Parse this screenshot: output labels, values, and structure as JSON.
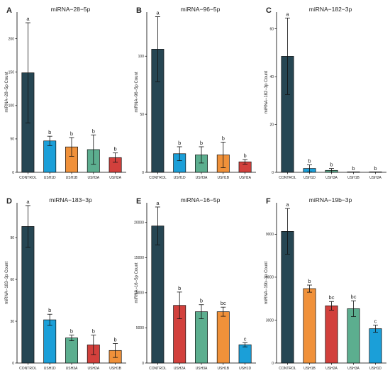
{
  "figure": {
    "panels": [
      {
        "letter": "A",
        "title": "miRNA−28−5p"
      },
      {
        "letter": "B",
        "title": "miRNA−96−5p"
      },
      {
        "letter": "C",
        "title": "miRNA−182−3p"
      },
      {
        "letter": "D",
        "title": "miRNA−183−3p"
      },
      {
        "letter": "E",
        "title": "miRNA−16−5p"
      },
      {
        "letter": "F",
        "title": "miRNA−19b−3p"
      }
    ]
  },
  "colors": {
    "CONTROL": "#264653",
    "USH1D": "#1b9fd8",
    "USH1B": "#f0913a",
    "USH3A": "#5cae8f",
    "USH2A": "#d2403c"
  },
  "chart_data": [
    {
      "type": "bar",
      "title": "miRNA−28−5p",
      "ylabel": "miRNA−28−5p Count",
      "categories": [
        "CONTROL",
        "USH1D",
        "USH1B",
        "USH3A",
        "USH2A"
      ],
      "values": [
        149,
        47,
        38,
        34,
        22
      ],
      "errors": [
        75,
        7,
        14,
        22,
        7
      ],
      "letters": [
        "a",
        "b",
        "b",
        "b",
        "b"
      ],
      "ylim": [
        0,
        240
      ],
      "yticks": [
        0,
        50,
        100,
        150,
        200
      ],
      "ytick_labels": [
        "0",
        "50",
        "100",
        "150",
        "200"
      ]
    },
    {
      "type": "bar",
      "title": "miRNA−96−5p",
      "ylabel": "miRNA−96−5p Count",
      "categories": [
        "CONTROL",
        "USH1D",
        "USH3A",
        "USH1B",
        "USH2A"
      ],
      "values": [
        106,
        16,
        15,
        15,
        9
      ],
      "errors": [
        28,
        6,
        7,
        11,
        2
      ],
      "letters": [
        "a",
        "b",
        "b",
        "b",
        "b"
      ],
      "ylim": [
        0,
        138
      ],
      "yticks": [
        0,
        50,
        100
      ],
      "ytick_labels": [
        "0",
        "50",
        "100"
      ]
    },
    {
      "type": "bar",
      "title": "miRNA−182−3p",
      "ylabel": "miRNA−182−3p Count",
      "categories": [
        "CONTROL",
        "USH1D",
        "USH3A",
        "USH1B",
        "USH2A"
      ],
      "values": [
        48.5,
        1.6,
        0.8,
        0,
        0
      ],
      "errors": [
        16,
        1.5,
        0.8,
        0,
        0
      ],
      "letters": [
        "a",
        "b",
        "b",
        "b",
        "b"
      ],
      "ylim": [
        0,
        67
      ],
      "yticks": [
        0,
        20,
        40,
        60
      ],
      "ytick_labels": [
        "0",
        "20",
        "40",
        "60"
      ]
    },
    {
      "type": "bar",
      "title": "miRNA−183−3p",
      "ylabel": "miRNA−183−3p Count",
      "categories": [
        "CONTROL",
        "USH1D",
        "USH3A",
        "USH2A",
        "USH1B"
      ],
      "values": [
        98,
        31,
        18,
        13,
        9
      ],
      "errors": [
        15,
        4,
        2,
        7,
        5
      ],
      "letters": [
        "a",
        "b",
        "b",
        "b",
        "b"
      ],
      "ylim": [
        0,
        115
      ],
      "yticks": [
        0,
        30,
        60,
        90
      ],
      "ytick_labels": [
        "0",
        "30",
        "60",
        "90"
      ]
    },
    {
      "type": "bar",
      "title": "miRNA−16−5p",
      "ylabel": "miRNA−16−5p Count",
      "categories": [
        "CONTROL",
        "USH2A",
        "USH3A",
        "USH1B",
        "USH1D"
      ],
      "values": [
        19500,
        8200,
        7300,
        7300,
        2600
      ],
      "errors": [
        2700,
        1900,
        1000,
        650,
        300
      ],
      "letters": [
        "a",
        "b",
        "b",
        "bc",
        "c"
      ],
      "ylim": [
        0,
        22800
      ],
      "yticks": [
        0,
        5000,
        10000,
        15000,
        20000
      ],
      "ytick_labels": [
        "0",
        "5000",
        "10000",
        "15000",
        "20000"
      ]
    },
    {
      "type": "bar",
      "title": "miRNA−19b−3p",
      "ylabel": "miRNA−19b−3p Count",
      "categories": [
        "CONTROL",
        "USH1B",
        "USH2A",
        "USH3A",
        "USH1D"
      ],
      "values": [
        9200,
        5200,
        4000,
        3800,
        2400
      ],
      "errors": [
        1600,
        250,
        300,
        550,
        250
      ],
      "letters": [
        "a",
        "b",
        "bc",
        "bc",
        "c"
      ],
      "ylim": [
        0,
        11200
      ],
      "yticks": [
        0,
        3000,
        6000,
        9000
      ],
      "ytick_labels": [
        "0",
        "3000",
        "6000",
        "9000"
      ]
    }
  ]
}
